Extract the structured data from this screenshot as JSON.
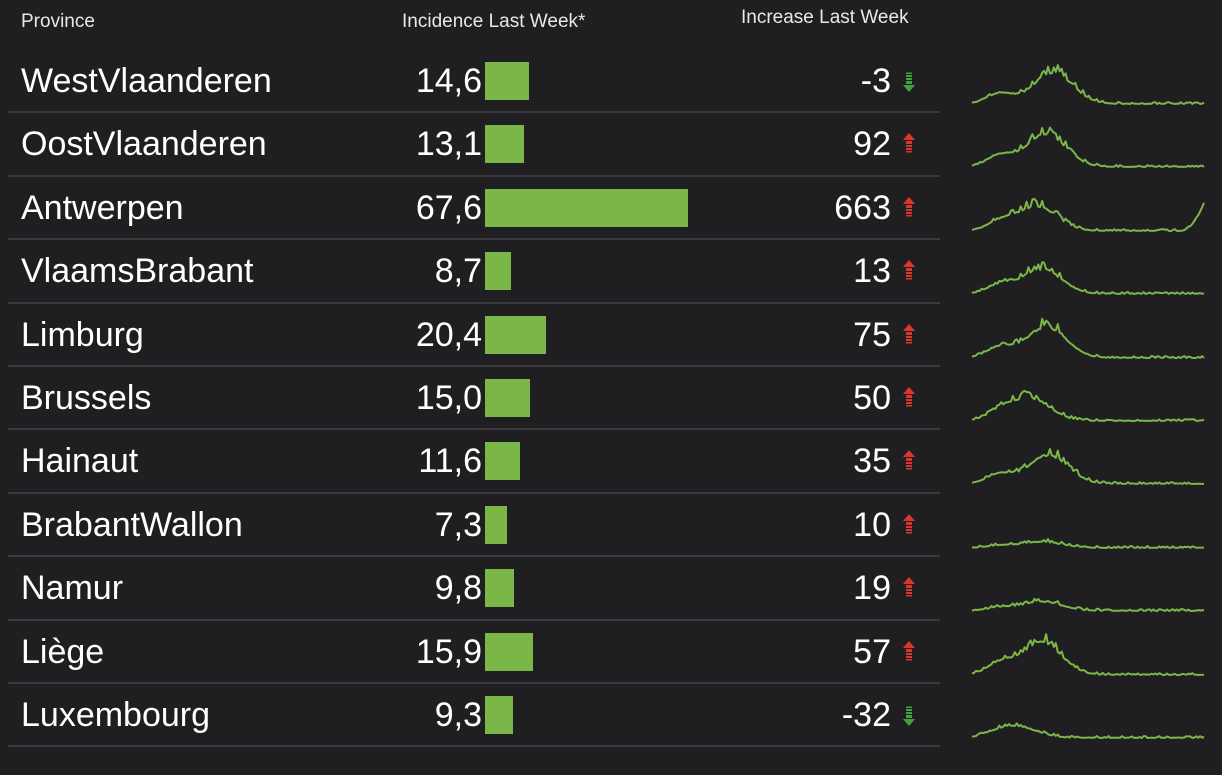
{
  "header": {
    "province": "Province",
    "incidence": "Incidence Last Week*",
    "increase": "Increase Last Week"
  },
  "colors": {
    "background": "#1f1f22",
    "bar": "#7ab648",
    "sparkline": "#7ab648",
    "arrow_up": "#d9372c",
    "arrow_down": "#3ea43e",
    "divider": "#3a3a3e"
  },
  "scale": {
    "incidence_max": 67.6
  },
  "rows": [
    {
      "name": "WestVlaanderen",
      "incidence": "14,6",
      "incidence_value": 14.6,
      "delta": "-3",
      "direction": "down",
      "trend_icon": "arrow-down-icon"
    },
    {
      "name": "OostVlaanderen",
      "incidence": "13,1",
      "incidence_value": 13.1,
      "delta": "92",
      "direction": "up",
      "trend_icon": "arrow-up-icon"
    },
    {
      "name": "Antwerpen",
      "incidence": "67,6",
      "incidence_value": 67.6,
      "delta": "663",
      "direction": "up",
      "trend_icon": "arrow-up-icon"
    },
    {
      "name": "VlaamsBrabant",
      "incidence": "8,7",
      "incidence_value": 8.7,
      "delta": "13",
      "direction": "up",
      "trend_icon": "arrow-up-icon"
    },
    {
      "name": "Limburg",
      "incidence": "20,4",
      "incidence_value": 20.4,
      "delta": "75",
      "direction": "up",
      "trend_icon": "arrow-up-icon"
    },
    {
      "name": "Brussels",
      "incidence": "15,0",
      "incidence_value": 15.0,
      "delta": "50",
      "direction": "up",
      "trend_icon": "arrow-up-icon"
    },
    {
      "name": "Hainaut",
      "incidence": "11,6",
      "incidence_value": 11.6,
      "delta": "35",
      "direction": "up",
      "trend_icon": "arrow-up-icon"
    },
    {
      "name": "BrabantWallon",
      "incidence": "7,3",
      "incidence_value": 7.3,
      "delta": "10",
      "direction": "up",
      "trend_icon": "arrow-up-icon"
    },
    {
      "name": "Namur",
      "incidence": "9,8",
      "incidence_value": 9.8,
      "delta": "19",
      "direction": "up",
      "trend_icon": "arrow-up-icon"
    },
    {
      "name": "Liège",
      "incidence": "15,9",
      "incidence_value": 15.9,
      "delta": "57",
      "direction": "up",
      "trend_icon": "arrow-up-icon"
    },
    {
      "name": "Luxembourg",
      "incidence": "9,3",
      "incidence_value": 9.3,
      "delta": "-32",
      "direction": "down",
      "trend_icon": "arrow-down-icon"
    }
  ]
}
